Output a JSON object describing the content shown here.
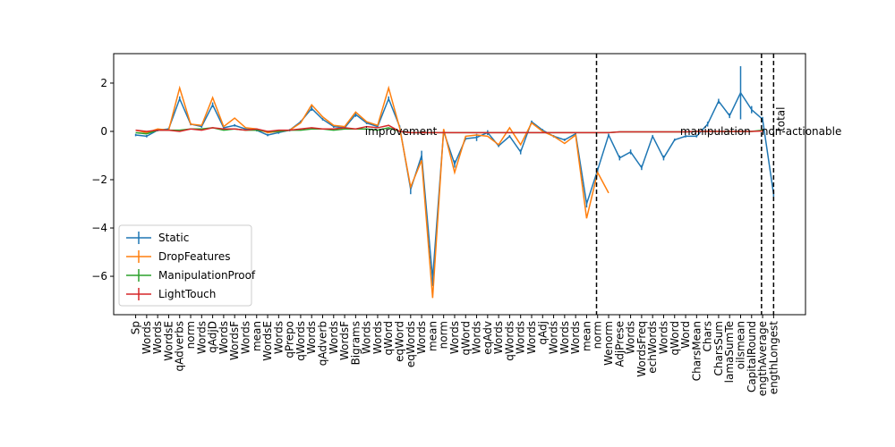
{
  "chart_data": {
    "type": "line",
    "categories": [
      "Sp",
      "Words",
      "Words",
      "WordsE",
      "qAdverbs",
      "norm",
      "Words",
      "qAdjD",
      "Words",
      "WordsF",
      "Words",
      "mean",
      "WordsE",
      "Words",
      "qPrepo",
      "qWords",
      "Words",
      "qAdverb",
      "Words",
      "WordsF",
      "Bigrams",
      "Words",
      "Words",
      "qWord",
      "eqWord",
      "eqWords",
      "Words",
      "mean",
      "norm",
      "Words",
      "qWord",
      "Words",
      "eqAdv",
      "Words",
      "qWords",
      "Words",
      "Words",
      "qAdj",
      "Words",
      "Words",
      "Words",
      "mean",
      "norm",
      "Wenorm",
      "AdjPrese",
      "Words",
      "WordsFreq",
      "echWords",
      "Words",
      "qWord",
      "Word",
      "CharsMean",
      "Chars",
      "CharsSum",
      "lamaSumTe",
      "oilsmean",
      "CapitalRound",
      "engthAverage",
      "engthLongest"
    ],
    "series": [
      {
        "name": "Static",
        "color": "#1f77b4",
        "values": [
          -0.15,
          -0.2,
          0.05,
          0.1,
          1.35,
          0.3,
          0.2,
          1.1,
          0.15,
          0.25,
          0.1,
          0.05,
          -0.15,
          -0.05,
          0.05,
          0.4,
          0.95,
          0.5,
          0.2,
          0.15,
          0.7,
          0.35,
          0.2,
          1.35,
          0.2,
          -2.4,
          -1.0,
          -6.1,
          0.0,
          -1.35,
          -0.3,
          -0.25,
          -0.05,
          -0.6,
          -0.2,
          -0.85,
          0.4,
          0.05,
          -0.2,
          -0.35,
          -0.1,
          -3.0,
          -1.6,
          -0.15,
          -1.1,
          -0.85,
          -1.5,
          -0.2,
          -1.1,
          -0.35,
          -0.2,
          -0.2,
          0.3,
          1.25,
          0.65,
          1.6,
          0.9,
          0.5,
          -2.6
        ],
        "errors": [
          0.05,
          0.05,
          0.05,
          0.05,
          0.1,
          0.05,
          0.05,
          0.1,
          0.05,
          0.05,
          0.05,
          0.05,
          0.05,
          0.05,
          0.05,
          0.05,
          0.1,
          0.05,
          0.05,
          0.05,
          0.1,
          0.05,
          0.05,
          0.1,
          0.05,
          0.2,
          0.2,
          0.3,
          0.05,
          0.15,
          0.05,
          0.15,
          0.1,
          0.05,
          0.05,
          0.1,
          0.05,
          0.05,
          0.05,
          0.05,
          0.05,
          0.15,
          0.1,
          0.05,
          0.1,
          0.1,
          0.1,
          0.05,
          0.1,
          0.05,
          0.05,
          0.05,
          0.1,
          0.1,
          0.1,
          1.1,
          0.15,
          0.1,
          0.1
        ]
      },
      {
        "name": "DropFeatures",
        "color": "#ff7f0e",
        "values": [
          0.05,
          -0.05,
          0.1,
          0.05,
          1.8,
          0.3,
          0.25,
          1.4,
          0.2,
          0.55,
          0.15,
          0.1,
          -0.05,
          0.0,
          0.05,
          0.35,
          1.1,
          0.6,
          0.25,
          0.2,
          0.8,
          0.4,
          0.25,
          1.8,
          0.15,
          -2.3,
          -1.2,
          -6.9,
          0.1,
          -1.7,
          -0.2,
          -0.15,
          -0.2,
          -0.55,
          0.15,
          -0.55,
          0.35,
          0.0,
          -0.2,
          -0.5,
          -0.15,
          -3.6,
          -1.7,
          -2.55,
          null,
          null,
          null,
          null,
          null,
          null,
          null,
          null,
          null,
          null,
          null,
          null,
          null,
          null,
          null
        ]
      },
      {
        "name": "ManipulationProof",
        "color": "#2ca02c",
        "values": [
          -0.05,
          -0.1,
          0.05,
          0.05,
          0.05,
          0.1,
          0.1,
          0.15,
          0.05,
          0.1,
          0.05,
          0.05,
          0.0,
          0.0,
          0.05,
          0.05,
          0.1,
          0.1,
          0.05,
          0.1,
          0.1,
          0.1,
          0.05,
          0.15,
          0.0,
          -0.05,
          -0.05,
          -0.05,
          -0.05,
          -0.05,
          -0.05,
          -0.05,
          -0.05,
          -0.05,
          -0.05,
          -0.05,
          -0.05,
          -0.05,
          -0.05,
          -0.05,
          -0.05,
          -0.05,
          -0.05,
          -0.05,
          -0.02,
          -0.02,
          -0.02,
          -0.02,
          -0.02,
          -0.02,
          -0.02,
          0.0,
          0.0,
          0.0,
          0.0,
          0.0,
          0.0,
          0.05,
          null
        ]
      },
      {
        "name": "LightTouch",
        "color": "#d62728",
        "values": [
          0.05,
          0.0,
          0.05,
          0.05,
          0.0,
          0.1,
          0.05,
          0.15,
          0.1,
          0.1,
          0.05,
          0.1,
          0.0,
          0.05,
          0.05,
          0.1,
          0.15,
          0.1,
          0.1,
          0.15,
          0.1,
          0.2,
          0.15,
          0.25,
          0.0,
          -0.05,
          -0.05,
          -0.05,
          -0.05,
          -0.05,
          -0.05,
          -0.05,
          -0.05,
          -0.05,
          -0.05,
          -0.05,
          -0.05,
          -0.05,
          -0.05,
          -0.05,
          -0.05,
          -0.05,
          -0.05,
          -0.05,
          -0.02,
          -0.02,
          -0.02,
          -0.02,
          -0.02,
          -0.02,
          -0.02,
          0.0,
          0.0,
          0.0,
          0.0,
          0.0,
          0.0,
          0.02,
          null
        ]
      }
    ],
    "xlim": [
      -2,
      60.9
    ],
    "ylim": [
      -7.59,
      3.22
    ],
    "yticks": [
      {
        "value": -6,
        "label": "−6"
      },
      {
        "value": -4,
        "label": "−4"
      },
      {
        "value": -2,
        "label": "−2"
      },
      0,
      2
    ],
    "vlines": [
      41.9,
      56.9,
      58
    ],
    "annotations": [
      {
        "text": "improvement",
        "x": 20.85,
        "y": 0
      },
      {
        "text": "manipulation",
        "x": 49.5,
        "y": 0
      },
      {
        "text": "non-actionable",
        "x": 56.9,
        "y": 0
      },
      {
        "text": "total",
        "x": 58,
        "y": 0,
        "rotation": 90
      }
    ],
    "legend": "lower left"
  }
}
